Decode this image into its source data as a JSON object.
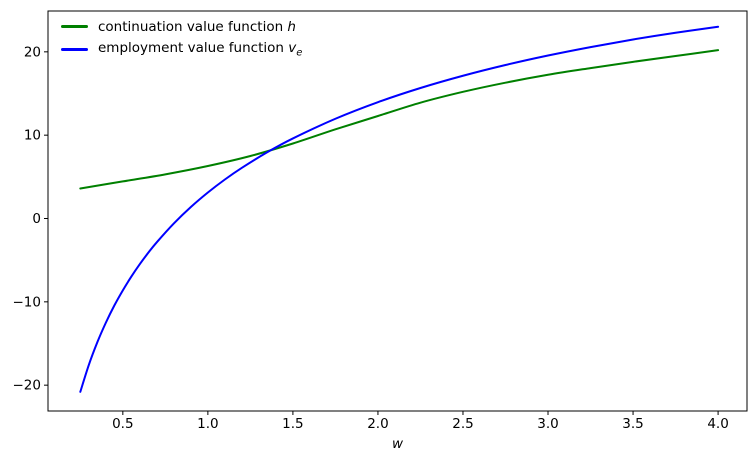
{
  "figure": {
    "background": "#ffffff",
    "text_color": "#000000",
    "spine_color": "#000000"
  },
  "chart_data": {
    "type": "line",
    "title": "",
    "xlabel": "w",
    "ylabel": "",
    "grid": false,
    "xlim": [
      0.06,
      4.17
    ],
    "ylim": [
      -23.1,
      24.9
    ],
    "x_ticks": [
      "0.5",
      "1.0",
      "1.5",
      "2.0",
      "2.5",
      "3.0",
      "3.5",
      "4.0"
    ],
    "x_tick_values": [
      0.5,
      1.0,
      1.5,
      2.0,
      2.5,
      3.0,
      3.5,
      4.0
    ],
    "y_ticks": [
      "−20",
      "−10",
      "0",
      "10",
      "20"
    ],
    "y_tick_values": [
      -20,
      -10,
      0,
      10,
      20
    ],
    "legend": {
      "position": "upper left",
      "frame": false
    },
    "series": [
      {
        "id": "continuation-value",
        "name": "continuation value function h",
        "label_prefix": "continuation value function ",
        "label_math": "h",
        "label_sub": "",
        "color": "#008000",
        "line_width": 2,
        "x": [
          0.25,
          0.5,
          0.75,
          1.0,
          1.25,
          1.5,
          1.75,
          2.0,
          2.25,
          2.5,
          2.75,
          3.0,
          3.25,
          3.5,
          3.75,
          4.0
        ],
        "y": [
          3.6,
          4.45,
          5.3,
          6.3,
          7.5,
          9.0,
          10.7,
          12.3,
          13.9,
          15.2,
          16.3,
          17.25,
          18.05,
          18.8,
          19.5,
          20.2
        ]
      },
      {
        "id": "employment-value",
        "name": "employment value function v_e",
        "label_prefix": "employment value function ",
        "label_math": "v",
        "label_sub": "e",
        "color": "#0000ff",
        "line_width": 2,
        "x": [
          0.25,
          0.3,
          0.35,
          0.4,
          0.45,
          0.5,
          0.55,
          0.6,
          0.65,
          0.7,
          0.8,
          0.9,
          1.0,
          1.1,
          1.2,
          1.35,
          1.5,
          1.75,
          2.0,
          2.25,
          2.5,
          2.75,
          3.0,
          3.25,
          3.5,
          3.75,
          4.0
        ],
        "y": [
          -20.8,
          -17.57,
          -14.85,
          -12.51,
          -10.44,
          -8.62,
          -6.97,
          -5.47,
          -4.1,
          -2.84,
          -0.59,
          1.38,
          3.12,
          4.68,
          6.08,
          7.96,
          9.61,
          11.97,
          13.96,
          15.66,
          17.13,
          18.42,
          19.56,
          20.57,
          21.48,
          22.29,
          23.01
        ]
      }
    ],
    "crossing_point": {
      "w": 1.42,
      "value": 8.7
    }
  }
}
